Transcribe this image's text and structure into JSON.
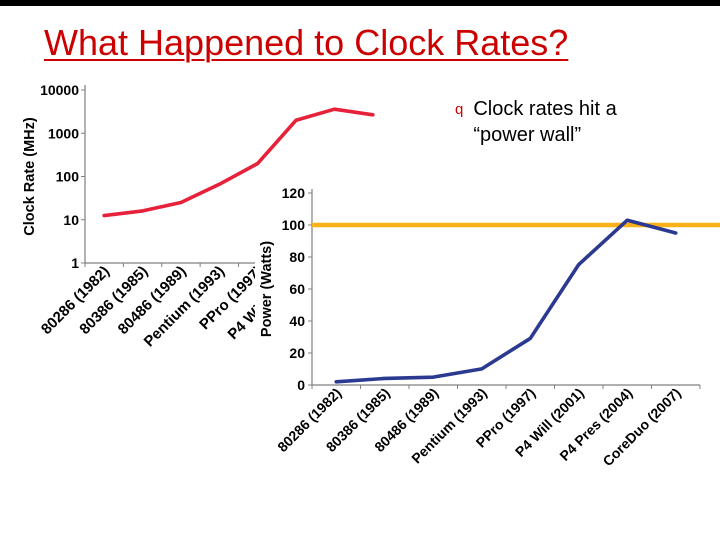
{
  "slide": {
    "title": "What Happened to Clock Rates?",
    "bullet": {
      "marker": "q",
      "line1": "Clock rates hit a",
      "line2": "“power wall”"
    }
  },
  "colors": {
    "title": "#cc0000",
    "bullet_marker": "#cc0000",
    "body_text": "#000000",
    "axis": "#808080",
    "clock_series": "#e8213a",
    "power_series": "#2b3a90",
    "power_wall": "#fbb117",
    "slide_background": "#ffffff",
    "top_border": "#000000"
  },
  "chart_data": [
    {
      "id": "clock",
      "type": "line",
      "title": "",
      "xlabel": "",
      "ylabel": "Clock Rate (MHz)",
      "yscale": "log",
      "ylim": [
        1,
        10000
      ],
      "yticks": [
        1,
        10,
        100,
        1000,
        10000
      ],
      "grid": false,
      "legend": "none",
      "categories": [
        "80286 (1982)",
        "80386 (1985)",
        "80486 (1989)",
        "Pentium (1993)",
        "PPro (1997)",
        "P4 Will (2001)",
        "P4 Pres (2004)",
        "CoreDuo (2007)"
      ],
      "values": [
        12.5,
        16,
        25,
        66,
        200,
        2000,
        3600,
        2667
      ],
      "color": "#e8213a"
    },
    {
      "id": "power",
      "type": "line",
      "title": "",
      "xlabel": "",
      "ylabel": "Power (Watts)",
      "yscale": "linear",
      "ylim": [
        0,
        120
      ],
      "yticks": [
        0,
        20,
        40,
        60,
        80,
        100,
        120
      ],
      "grid": false,
      "legend": "none",
      "categories": [
        "80286 (1982)",
        "80386 (1985)",
        "80486 (1989)",
        "Pentium (1993)",
        "PPro (1997)",
        "P4 Will (2001)",
        "P4 Pres (2004)",
        "CoreDuo (2007)"
      ],
      "values": [
        2,
        4.1,
        4.9,
        10.1,
        29.1,
        75.3,
        103,
        95
      ],
      "color": "#2b3a90",
      "ref_line": {
        "value": 100,
        "color": "#fbb117"
      }
    }
  ]
}
